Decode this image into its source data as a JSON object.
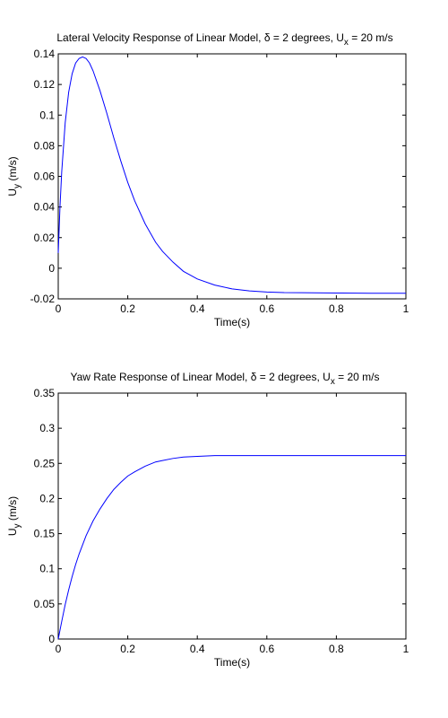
{
  "chart_data": [
    {
      "type": "line",
      "title": {
        "prefix": "Lateral Velocity Response of Linear Model, ",
        "delta_symbol": "δ",
        "middle": " = 2 degrees, U",
        "sub": "x",
        "suffix": " = 20 m/s"
      },
      "xlabel": "Time(s)",
      "ylabel": {
        "main": "U",
        "sub": "y",
        "rest": " (m/s)"
      },
      "xlim": [
        0,
        1
      ],
      "ylim": [
        -0.02,
        0.14
      ],
      "xticks": [
        0,
        0.2,
        0.4,
        0.6,
        0.8,
        1
      ],
      "xtick_labels": [
        "0",
        "0.2",
        "0.4",
        "0.6",
        "0.8",
        "1"
      ],
      "yticks": [
        -0.02,
        0,
        0.02,
        0.04,
        0.06,
        0.08,
        0.1,
        0.12,
        0.14
      ],
      "ytick_labels": [
        "-0.02",
        "0",
        "0.02",
        "0.04",
        "0.06",
        "0.08",
        "0.1",
        "0.12",
        "0.14"
      ],
      "grid": false,
      "line_color": "#0000ff",
      "series": [
        {
          "x": [
            0,
            0.005,
            0.01,
            0.02,
            0.03,
            0.04,
            0.05,
            0.06,
            0.07,
            0.075,
            0.08,
            0.09,
            0.1,
            0.12,
            0.14,
            0.16,
            0.18,
            0.2,
            0.22,
            0.25,
            0.28,
            0.3,
            0.33,
            0.36,
            0.4,
            0.45,
            0.5,
            0.55,
            0.6,
            0.65,
            0.7,
            0.8,
            0.9,
            1.0
          ],
          "y": [
            0.01,
            0.04,
            0.063,
            0.095,
            0.115,
            0.127,
            0.134,
            0.137,
            0.138,
            0.1375,
            0.137,
            0.134,
            0.129,
            0.116,
            0.101,
            0.085,
            0.07,
            0.056,
            0.044,
            0.029,
            0.017,
            0.011,
            0.004,
            -0.002,
            -0.007,
            -0.011,
            -0.0135,
            -0.0148,
            -0.0155,
            -0.0159,
            -0.016,
            -0.0162,
            -0.0163,
            -0.0163
          ]
        }
      ]
    },
    {
      "type": "line",
      "title": {
        "prefix": "Yaw Rate Response of Linear Model, ",
        "delta_symbol": "δ",
        "middle": " = 2 degrees, U",
        "sub": "x",
        "suffix": " = 20 m/s"
      },
      "xlabel": "Time(s)",
      "ylabel": {
        "main": "U",
        "sub": "y",
        "rest": " (m/s)"
      },
      "xlim": [
        0,
        1
      ],
      "ylim": [
        0,
        0.35
      ],
      "xticks": [
        0,
        0.2,
        0.4,
        0.6,
        0.8,
        1
      ],
      "xtick_labels": [
        "0",
        "0.2",
        "0.4",
        "0.6",
        "0.8",
        "1"
      ],
      "yticks": [
        0,
        0.05,
        0.1,
        0.15,
        0.2,
        0.25,
        0.3,
        0.35
      ],
      "ytick_labels": [
        "0",
        "0.05",
        "0.1",
        "0.15",
        "0.2",
        "0.25",
        "0.3",
        "0.35"
      ],
      "grid": false,
      "line_color": "#0000ff",
      "series": [
        {
          "x": [
            0,
            0.01,
            0.02,
            0.03,
            0.04,
            0.05,
            0.06,
            0.08,
            0.1,
            0.12,
            0.14,
            0.16,
            0.18,
            0.2,
            0.22,
            0.25,
            0.28,
            0.3,
            0.33,
            0.36,
            0.4,
            0.45,
            0.5,
            0.6,
            0.7,
            0.8,
            0.9,
            1.0
          ],
          "y": [
            0,
            0.025,
            0.049,
            0.07,
            0.089,
            0.106,
            0.121,
            0.147,
            0.168,
            0.185,
            0.2,
            0.213,
            0.223,
            0.232,
            0.238,
            0.246,
            0.252,
            0.254,
            0.257,
            0.259,
            0.26,
            0.261,
            0.261,
            0.261,
            0.261,
            0.261,
            0.261,
            0.261
          ]
        }
      ]
    }
  ]
}
